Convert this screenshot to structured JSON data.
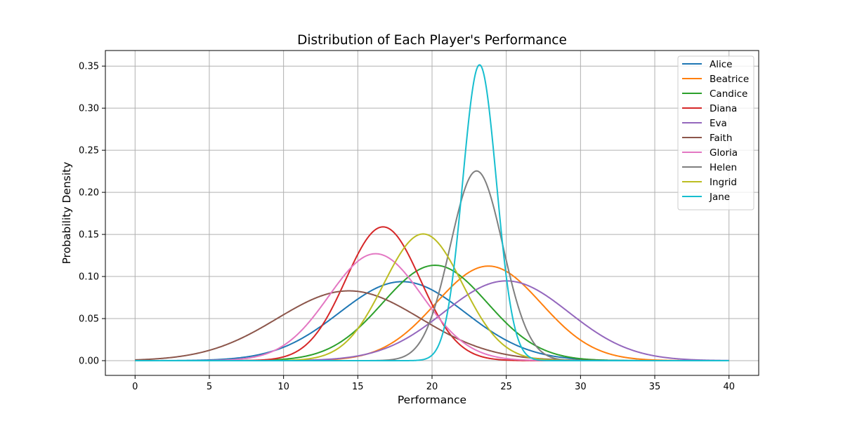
{
  "chart_data": {
    "type": "line",
    "title": "Distribution of Each Player's Performance",
    "xlabel": "Performance",
    "ylabel": "Probability Density",
    "xlim": [
      -2,
      42
    ],
    "ylim": [
      -0.0175,
      0.3685
    ],
    "x_ticks": [
      0,
      5,
      10,
      15,
      20,
      25,
      30,
      35,
      40
    ],
    "y_ticks": [
      "0.00",
      "0.05",
      "0.10",
      "0.15",
      "0.20",
      "0.25",
      "0.30",
      "0.35"
    ],
    "grid": true,
    "legend_position": "top-right",
    "curve_form": "normal probability density",
    "series": [
      {
        "name": "Alice",
        "color": "#1f77b4",
        "mean": 18.0,
        "std": 4.25,
        "peak_density": 0.094
      },
      {
        "name": "Beatrice",
        "color": "#ff7f0e",
        "mean": 23.8,
        "std": 3.55,
        "peak_density": 0.112
      },
      {
        "name": "Candice",
        "color": "#2ca02c",
        "mean": 20.2,
        "std": 3.52,
        "peak_density": 0.113
      },
      {
        "name": "Diana",
        "color": "#d62728",
        "mean": 16.7,
        "std": 2.51,
        "peak_density": 0.159
      },
      {
        "name": "Eva",
        "color": "#9467bd",
        "mean": 25.0,
        "std": 4.21,
        "peak_density": 0.095
      },
      {
        "name": "Faith",
        "color": "#8c564b",
        "mean": 14.4,
        "std": 4.81,
        "peak_density": 0.083
      },
      {
        "name": "Gloria",
        "color": "#e377c2",
        "mean": 16.2,
        "std": 3.14,
        "peak_density": 0.127
      },
      {
        "name": "Helen",
        "color": "#7f7f7f",
        "mean": 23.0,
        "std": 1.77,
        "peak_density": 0.226
      },
      {
        "name": "Ingrid",
        "color": "#bcbd22",
        "mean": 19.4,
        "std": 2.65,
        "peak_density": 0.151
      },
      {
        "name": "Jane",
        "color": "#17becf",
        "mean": 23.2,
        "std": 1.135,
        "peak_density": 0.352
      }
    ]
  }
}
